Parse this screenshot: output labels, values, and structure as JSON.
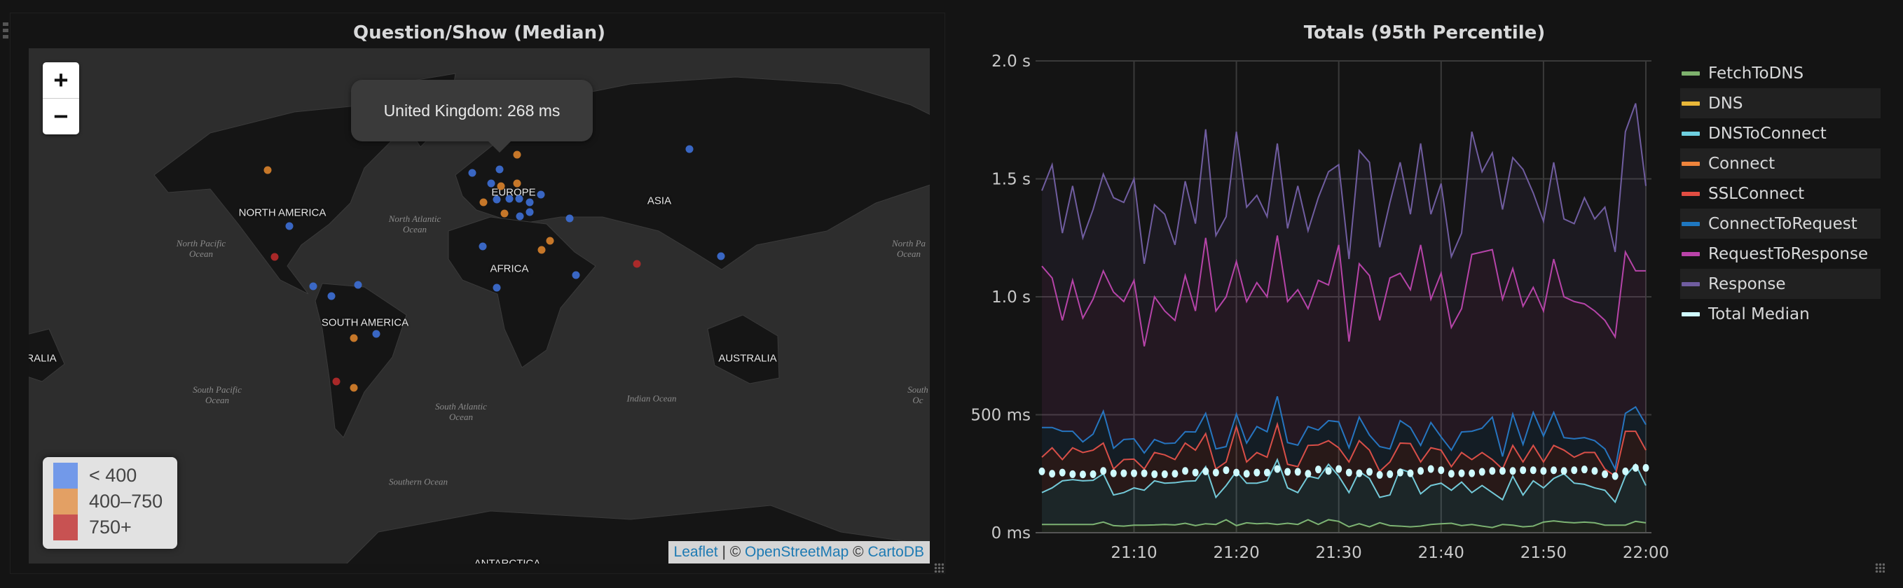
{
  "map_panel": {
    "title": "Question/Show (Median)",
    "zoom_in": "+",
    "zoom_out": "−",
    "tooltip": "United Kingdom: 268 ms",
    "legend": [
      {
        "label": "< 400",
        "color": "#7299e9"
      },
      {
        "label": "400–750",
        "color": "#e3a064"
      },
      {
        "label": "750+",
        "color": "#c85252"
      }
    ],
    "marker_colors": {
      "low": "#3d6fd6",
      "mid": "#d9822b",
      "high": "#b82a2a"
    },
    "attribution": {
      "leaflet": "Leaflet",
      "sep": " | © ",
      "osm": "OpenStreetMap",
      "sep2": " © ",
      "carto": "CartoDB"
    },
    "continent_labels": [
      "NORTH AMERICA",
      "EUROPE",
      "ASIA",
      "AFRICA",
      "SOUTH AMERICA",
      "AUSTRALIA",
      "RALIA",
      "ANTARCTICA"
    ],
    "ocean_labels": [
      "North Atlantic\nOcean",
      "North Pacific\nOcean",
      "South Pacific\nOcean",
      "South Atlantic\nOcean",
      "Indian Ocean",
      "Southern Ocean",
      "North Pa\nOcean",
      "South\nOc"
    ]
  },
  "chart_panel": {
    "title": "Totals (95th Percentile)"
  },
  "chart_data": {
    "type": "area",
    "stacked": true,
    "title": "Totals (95th Percentile)",
    "x_ticks": [
      "21:10",
      "21:20",
      "21:30",
      "21:40",
      "21:50",
      "22:00"
    ],
    "x_range": [
      "21:01",
      "22:00"
    ],
    "x_step": "1 min",
    "y_ticks": [
      "0 ms",
      "500 ms",
      "1.0 s",
      "1.5 s",
      "2.0 s"
    ],
    "ylim_ms": [
      0,
      2000
    ],
    "grid": true,
    "legend_position": "right",
    "series": [
      {
        "name": "FetchToDNS",
        "color": "#7eb26d",
        "values": [
          35,
          35,
          35,
          35,
          35,
          35,
          45,
          30,
          28,
          32,
          32,
          33,
          35,
          33,
          40,
          30,
          38,
          35,
          55,
          30,
          42,
          38,
          40,
          35,
          40,
          35,
          55,
          35,
          55,
          48,
          25,
          38,
          25,
          42,
          30,
          28,
          25,
          28,
          35,
          38,
          40,
          30,
          35,
          28,
          22,
          35,
          32,
          25,
          28,
          45,
          50,
          45,
          42,
          45,
          42,
          32,
          32,
          32,
          48,
          42
        ]
      },
      {
        "name": "DNS",
        "color": "#eab839",
        "values": []
      },
      {
        "name": "DNSToConnect",
        "color": "#6ed0e0",
        "values": [
          170,
          190,
          220,
          225,
          220,
          222,
          250,
          160,
          170,
          190,
          180,
          220,
          210,
          212,
          218,
          220,
          280,
          150,
          200,
          260,
          210,
          210,
          220,
          310,
          190,
          170,
          240,
          230,
          290,
          240,
          170,
          260,
          230,
          150,
          160,
          270,
          255,
          165,
          200,
          210,
          180,
          215,
          170,
          200,
          170,
          140,
          240,
          160,
          220,
          190,
          230,
          250,
          210,
          205,
          190,
          180,
          130,
          240,
          290,
          200
        ]
      },
      {
        "name": "Connect",
        "color": "#ef843c",
        "values": []
      },
      {
        "name": "SSLConnect",
        "color": "#e24d42",
        "values": [
          320,
          360,
          310,
          360,
          340,
          350,
          380,
          270,
          310,
          312,
          270,
          340,
          330,
          310,
          380,
          350,
          420,
          270,
          300,
          450,
          300,
          340,
          320,
          460,
          290,
          280,
          370,
          372,
          390,
          360,
          300,
          390,
          350,
          260,
          300,
          380,
          378,
          300,
          360,
          350,
          280,
          340,
          310,
          340,
          310,
          270,
          370,
          300,
          370,
          300,
          370,
          350,
          320,
          340,
          340,
          270,
          240,
          430,
          430,
          350
        ]
      },
      {
        "name": "ConnectToRequest",
        "color": "#1f78c1",
        "values": [
          446,
          446,
          430,
          430,
          385,
          418,
          515,
          358,
          395,
          398,
          338,
          395,
          378,
          380,
          428,
          427,
          506,
          355,
          365,
          503,
          380,
          450,
          428,
          578,
          382,
          371,
          450,
          435,
          475,
          470,
          360,
          490,
          414,
          365,
          355,
          475,
          446,
          370,
          467,
          406,
          350,
          427,
          430,
          443,
          490,
          323,
          503,
          374,
          510,
          410,
          510,
          403,
          398,
          403,
          390,
          355,
          270,
          506,
          533,
          458
        ]
      },
      {
        "name": "RequestToResponse",
        "color": "#ba43a9",
        "values": [
          1130,
          1080,
          900,
          1070,
          910,
          990,
          1110,
          1020,
          980,
          1070,
          790,
          1000,
          940,
          900,
          1090,
          940,
          1250,
          940,
          1000,
          1150,
          980,
          1060,
          1000,
          1260,
          980,
          1030,
          950,
          1070,
          1050,
          1220,
          810,
          1140,
          1090,
          900,
          1080,
          1100,
          1030,
          1220,
          990,
          1100,
          870,
          950,
          1180,
          1190,
          1200,
          990,
          1120,
          960,
          1040,
          940,
          1160,
          1000,
          980,
          970,
          940,
          900,
          830,
          1190,
          1110,
          1110
        ]
      },
      {
        "name": "Response",
        "color": "#705da0",
        "values": [
          1450,
          1560,
          1270,
          1470,
          1250,
          1370,
          1520,
          1420,
          1400,
          1500,
          1140,
          1390,
          1350,
          1220,
          1490,
          1310,
          1710,
          1260,
          1340,
          1700,
          1380,
          1430,
          1340,
          1650,
          1290,
          1470,
          1280,
          1420,
          1530,
          1560,
          1160,
          1620,
          1570,
          1210,
          1400,
          1570,
          1350,
          1650,
          1350,
          1480,
          1170,
          1270,
          1700,
          1530,
          1610,
          1370,
          1590,
          1540,
          1440,
          1320,
          1570,
          1330,
          1310,
          1420,
          1330,
          1380,
          1190,
          1700,
          1820,
          1470
        ]
      },
      {
        "name": "Total Median",
        "color": "#cffaff",
        "style": "points",
        "values": [
          260,
          250,
          255,
          248,
          247,
          248,
          262,
          252,
          252,
          252,
          252,
          248,
          248,
          250,
          262,
          255,
          260,
          255,
          265,
          255,
          250,
          255,
          255,
          270,
          258,
          258,
          250,
          268,
          262,
          270,
          255,
          252,
          258,
          245,
          248,
          255,
          252,
          262,
          270,
          265,
          250,
          252,
          252,
          258,
          262,
          262,
          262,
          265,
          265,
          262,
          265,
          262,
          265,
          268,
          262,
          248,
          240,
          260,
          275,
          275
        ]
      }
    ]
  }
}
